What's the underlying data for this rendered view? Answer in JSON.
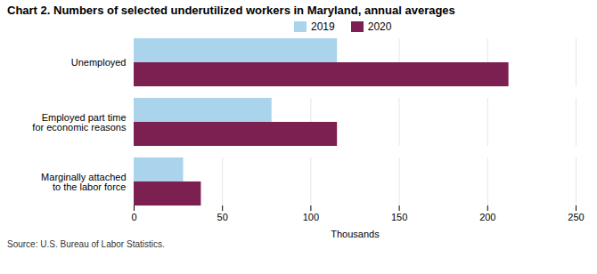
{
  "chart_data": {
    "type": "bar",
    "orientation": "horizontal",
    "title": "Chart 2.  Numbers of selected underutilized workers in Maryland, annual averages",
    "categories": [
      "Unemployed",
      "Employed part time\nfor economic reasons",
      "Marginally attached\nto the labor force"
    ],
    "series": [
      {
        "name": "2019",
        "color": "#aad4eb",
        "values": [
          115,
          78,
          28
        ]
      },
      {
        "name": "2020",
        "color": "#7b2050",
        "values": [
          212,
          115,
          38
        ]
      }
    ],
    "xlabel": "Thousands",
    "xlim": [
      0,
      250
    ],
    "xticks": [
      0,
      50,
      100,
      150,
      200,
      250
    ],
    "grid": true,
    "legend": "top",
    "annotations": [
      "Source: U.S. Bureau of Labor Statistics."
    ]
  }
}
